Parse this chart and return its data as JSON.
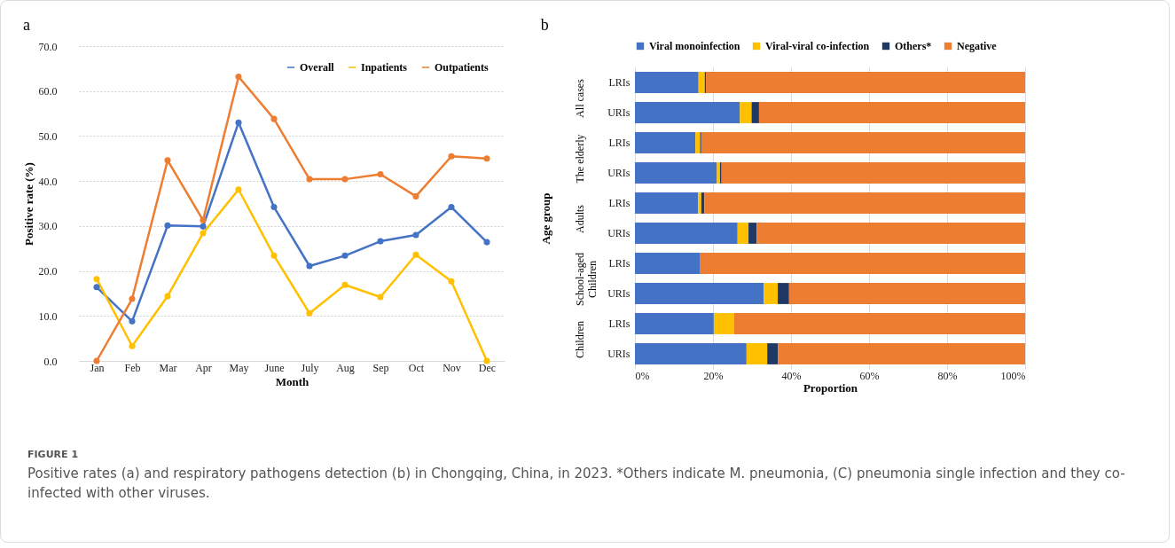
{
  "chart_data": [
    {
      "type": "line",
      "title": "a",
      "xlabel": "Month",
      "ylabel": "Positive rate (%)",
      "categories": [
        "Jan",
        "Feb",
        "Mar",
        "Apr",
        "May",
        "June",
        "July",
        "Aug",
        "Sep",
        "Oct",
        "Nov",
        "Dec"
      ],
      "series": [
        {
          "name": "Overall",
          "color": "#4472c4",
          "values": [
            16.4,
            8.8,
            30.1,
            29.9,
            53.0,
            34.2,
            21.1,
            23.4,
            26.6,
            28.0,
            34.2,
            26.4
          ]
        },
        {
          "name": "Inpatients",
          "color": "#ffc000",
          "values": [
            18.2,
            3.3,
            14.4,
            28.4,
            38.1,
            23.4,
            10.6,
            16.9,
            14.2,
            23.6,
            17.7,
            0.0
          ]
        },
        {
          "name": "Outpatients",
          "color": "#ed7d31",
          "values": [
            0.0,
            13.8,
            44.6,
            31.3,
            63.2,
            53.8,
            40.4,
            40.4,
            41.5,
            36.6,
            45.5,
            45.0
          ]
        }
      ],
      "ylim": [
        0,
        70
      ],
      "yticks": [
        {
          "value": 0,
          "label": "0.0"
        },
        {
          "value": 10,
          "label": "10.0"
        },
        {
          "value": 20,
          "label": "20.0"
        },
        {
          "value": 30,
          "label": "30.0"
        },
        {
          "value": 40,
          "label": "40.0"
        },
        {
          "value": 50,
          "label": "50.0"
        },
        {
          "value": 60,
          "label": "60.0"
        },
        {
          "value": 70,
          "label": "70.0"
        }
      ],
      "grid": "y",
      "legend": "top right",
      "marker": "circle",
      "line_style": "solid"
    },
    {
      "type": "bar",
      "title": "b",
      "xlabel": "Proportion",
      "ylabel": "Age group",
      "orientation": "horizontal",
      "stacked": true,
      "categories": [
        "LRIs",
        "URIs",
        "LRIs",
        "URIs",
        "LRIs",
        "URIs",
        "LRIs",
        "URIs",
        "LRIs",
        "URIs"
      ],
      "annotations": [
        "All cases",
        "The elderly",
        "Adults",
        "School-aged Children",
        "Children"
      ],
      "series": [
        {
          "name": "Viral monoinfection",
          "color": "#4472c4",
          "values": [
            16.3,
            26.9,
            15.5,
            21.0,
            16.2,
            26.3,
            16.6,
            33.0,
            20.2,
            28.6
          ]
        },
        {
          "name": "Viral-viral co-infection",
          "color": "#ffc000",
          "values": [
            1.6,
            3.0,
            1.2,
            0.8,
            0.8,
            2.8,
            0,
            3.6,
            5.2,
            5.3
          ]
        },
        {
          "name": "Others*",
          "color": "#203864",
          "values": [
            0.3,
            1.9,
            0.3,
            0.4,
            0.8,
            2.1,
            0,
            2.9,
            0,
            2.7
          ]
        },
        {
          "name": "Negative",
          "color": "#ed7d31",
          "values": [
            81.8,
            68.2,
            83.0,
            77.8,
            82.2,
            68.8,
            83.4,
            60.5,
            74.6,
            63.4
          ]
        }
      ],
      "xlim": [
        0,
        100
      ],
      "xticks": [
        {
          "value": 0,
          "label": "0%"
        },
        {
          "value": 20,
          "label": "20%"
        },
        {
          "value": 40,
          "label": "40%"
        },
        {
          "value": 60,
          "label": "60%"
        },
        {
          "value": 80,
          "label": "80%"
        },
        {
          "value": 100,
          "label": "100%"
        }
      ],
      "grid": "x",
      "legend": "top"
    },
    {
      "type": "other",
      "title": "FIGURE 1",
      "annotations": [
        "Positive rates (a) and respiratory pathogens detection (b) in Chongqing, China, in 2023. *Others indicate M. pneumonia, (C) pneumonia single infection and they co-infected with other viruses."
      ]
    }
  ]
}
